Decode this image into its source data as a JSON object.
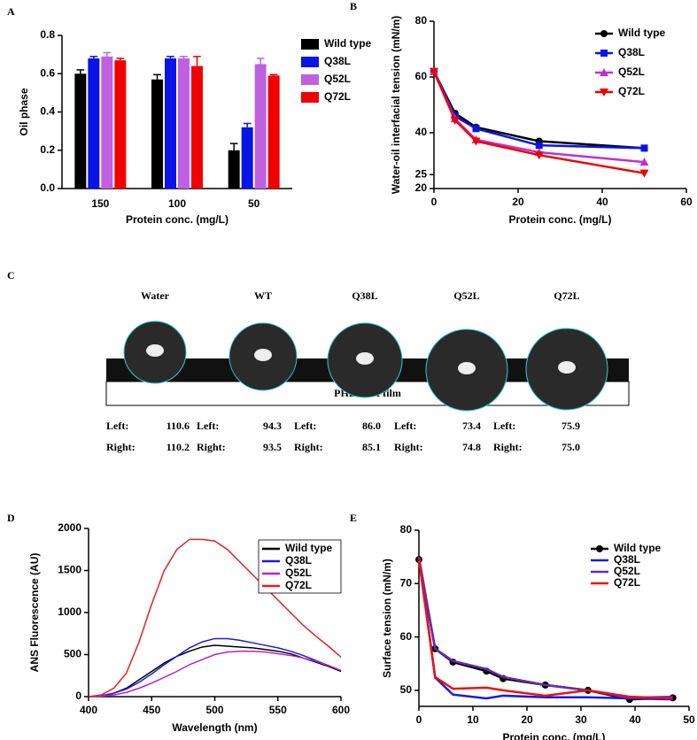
{
  "chart_data": [
    {
      "type": "bar",
      "panel": "A",
      "xlabel": "Protein conc. (mg/L)",
      "ylabel": "Oil phase",
      "categories": [
        "150",
        "100",
        "50"
      ],
      "ylim": [
        0,
        0.8
      ],
      "yticks": [
        {
          "value": 0,
          "label": "0.0"
        },
        0.2,
        0.4,
        0.6,
        0.8
      ],
      "series": [
        {
          "name": "Wild type",
          "color": "#000000",
          "values": [
            0.6,
            0.57,
            0.2
          ],
          "errors": [
            0.02,
            0.025,
            0.035
          ]
        },
        {
          "name": "Q38L",
          "color": "#0a14e6",
          "values": [
            0.68,
            0.68,
            0.32
          ],
          "errors": [
            0.01,
            0.01,
            0.02
          ]
        },
        {
          "name": "Q52L",
          "color": "#c060e0",
          "values": [
            0.69,
            0.68,
            0.65
          ],
          "errors": [
            0.02,
            0.01,
            0.03
          ]
        },
        {
          "name": "Q72L",
          "color": "#f00000",
          "values": [
            0.67,
            0.64,
            0.59
          ],
          "errors": [
            0.01,
            0.05,
            0.005
          ]
        }
      ]
    },
    {
      "type": "line",
      "panel": "B",
      "xlabel": "Protein conc. (mg/L)",
      "ylabel": "Water-oil interfacial tension (mN/m)",
      "x": [
        0,
        5,
        10,
        25,
        50
      ],
      "xlim": [
        0,
        60
      ],
      "xticks": [
        0,
        20,
        40,
        60
      ],
      "ylim": [
        20,
        80
      ],
      "yticks": [
        20,
        25,
        40,
        60,
        80
      ],
      "series": [
        {
          "name": "Wild type",
          "color": "#000000",
          "marker": "circle",
          "values": [
            62,
            47,
            42,
            37,
            34.5
          ]
        },
        {
          "name": "Q38L",
          "color": "#0a14e6",
          "marker": "square",
          "values": [
            62,
            46,
            41.5,
            35.5,
            34.5
          ]
        },
        {
          "name": "Q52L",
          "color": "#c030d0",
          "marker": "triangle",
          "values": [
            62,
            45,
            37.5,
            33,
            29.5
          ]
        },
        {
          "name": "Q72L",
          "color": "#f00000",
          "marker": "triangle-down",
          "values": [
            62,
            44.5,
            37,
            32,
            25.5
          ]
        }
      ]
    },
    {
      "type": "line",
      "panel": "D",
      "xlabel": "Wavelength (nm)",
      "ylabel": "ANS Fluorescence (AU)",
      "x": [
        400,
        410,
        420,
        430,
        440,
        450,
        460,
        470,
        480,
        490,
        500,
        510,
        520,
        530,
        540,
        550,
        560,
        570,
        580,
        590,
        600
      ],
      "xlim": [
        400,
        600
      ],
      "xticks": [
        400,
        450,
        500,
        550,
        600
      ],
      "ylim": [
        0,
        2000
      ],
      "yticks": [
        0,
        500,
        1000,
        1500,
        2000
      ],
      "series": [
        {
          "name": "Wild type",
          "color": "#000000",
          "values": [
            0,
            10,
            40,
            100,
            200,
            300,
            400,
            480,
            540,
            590,
            610,
            600,
            590,
            580,
            560,
            540,
            510,
            460,
            410,
            360,
            300
          ]
        },
        {
          "name": "Q38L",
          "color": "#1a1ae0",
          "values": [
            0,
            10,
            40,
            90,
            170,
            270,
            380,
            480,
            580,
            650,
            690,
            690,
            670,
            640,
            610,
            580,
            540,
            490,
            430,
            370,
            310
          ]
        },
        {
          "name": "Q52L",
          "color": "#c020c0",
          "values": [
            0,
            5,
            20,
            50,
            100,
            160,
            230,
            300,
            380,
            440,
            500,
            530,
            540,
            540,
            530,
            510,
            490,
            460,
            420,
            370,
            310
          ]
        },
        {
          "name": "Q72L",
          "color": "#e82020",
          "values": [
            0,
            20,
            100,
            280,
            650,
            1100,
            1500,
            1750,
            1870,
            1870,
            1850,
            1750,
            1600,
            1450,
            1300,
            1150,
            1000,
            850,
            720,
            600,
            470
          ]
        }
      ]
    },
    {
      "type": "line",
      "panel": "E",
      "xlabel": "Protein conc. (mg/L)",
      "ylabel": "Surface tension (mN/m)",
      "x": [
        0,
        3,
        6.3,
        12.5,
        15.6,
        23.4,
        31.3,
        39,
        47
      ],
      "xlim": [
        0,
        50
      ],
      "xticks": [
        0,
        10,
        20,
        30,
        40,
        50
      ],
      "ylim": [
        47,
        80
      ],
      "yticks": [
        50,
        60,
        70,
        80
      ],
      "series": [
        {
          "name": "Wild type",
          "color": "#000000",
          "marker": "circle",
          "values": [
            74.5,
            57.8,
            55.3,
            53.6,
            52.2,
            51,
            50,
            48.3,
            48.6
          ]
        },
        {
          "name": "Q38L",
          "color": "#1a1ae0",
          "values": [
            75,
            52.4,
            49.2,
            48.5,
            49,
            48.7,
            48.7,
            48.5,
            48.3
          ]
        },
        {
          "name": "Q52L",
          "color": "#6a2ab0",
          "values": [
            75,
            57.8,
            55.5,
            54,
            52.5,
            51,
            50,
            48.6,
            48.8
          ]
        },
        {
          "name": "Q72L",
          "color": "#ee1010",
          "values": [
            74.5,
            52.5,
            50.3,
            50.5,
            50,
            49,
            50,
            48.8,
            48.5
          ]
        }
      ]
    }
  ],
  "droplets": {
    "panel": "C",
    "labels": [
      "Water",
      "WT",
      "Q38L",
      "Q52L",
      "Q72L"
    ],
    "film": "PHBHHX film",
    "left_label": "Left:",
    "right_label": "Right:",
    "left": [
      "110.6",
      "94.3",
      "86.0",
      "73.4",
      "75.9"
    ],
    "right": [
      "110.2",
      "93.5",
      "85.1",
      "74.8",
      "75.0"
    ]
  }
}
